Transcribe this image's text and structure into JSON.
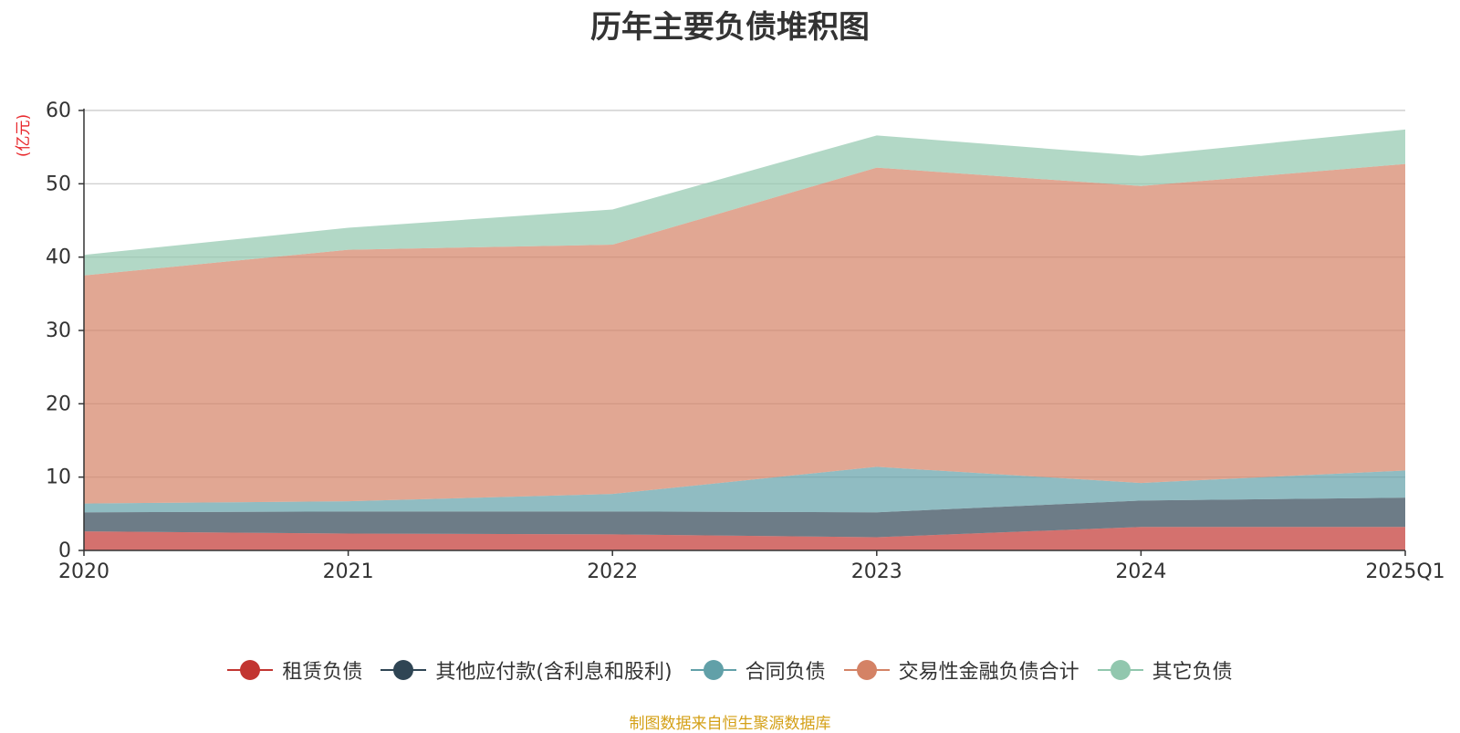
{
  "chart_data": {
    "type": "area",
    "stacked": true,
    "title": "历年主要负债堆积图",
    "unit_label": "(亿元)",
    "categories": [
      "2020",
      "2021",
      "2022",
      "2023",
      "2024",
      "2025Q1"
    ],
    "ylim": [
      0,
      60
    ],
    "yticks": [
      0,
      10,
      20,
      30,
      40,
      50,
      60
    ],
    "grid": true,
    "legend_position": "bottom",
    "series": [
      {
        "name": "租赁负债",
        "color": "#c23531",
        "values": [
          2.6,
          2.3,
          2.2,
          1.8,
          3.2,
          3.2
        ]
      },
      {
        "name": "其他应付款(含利息和股利)",
        "color": "#2f4554",
        "values": [
          2.6,
          3.0,
          3.1,
          3.4,
          3.6,
          4.0
        ]
      },
      {
        "name": "合同负债",
        "color": "#61a0a8",
        "values": [
          1.2,
          1.4,
          2.4,
          6.2,
          2.4,
          3.7
        ]
      },
      {
        "name": "交易性金融负债合计",
        "color": "#d48265",
        "values": [
          31.1,
          34.3,
          34.0,
          40.8,
          40.5,
          41.8
        ]
      },
      {
        "name": "其它负债",
        "color": "#91c7ae",
        "values": [
          2.8,
          3.0,
          4.8,
          4.4,
          4.1,
          4.7
        ]
      }
    ],
    "source": "制图数据来自恒生聚源数据库"
  }
}
